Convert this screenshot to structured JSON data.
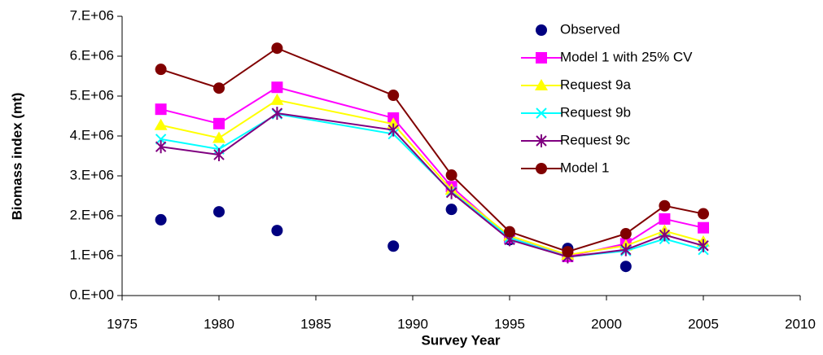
{
  "chart_data": {
    "type": "line",
    "x_label": "Survey Year",
    "y_label": "Biomass index (mt)",
    "x": [
      1977,
      1980,
      1983,
      1989,
      1992,
      1995,
      1998,
      2001,
      2003,
      2005
    ],
    "series": [
      {
        "name": "Observed",
        "color": "#000080",
        "marker": "circle",
        "line": false,
        "values": [
          1900000,
          2100000,
          1630000,
          1240000,
          2160000,
          1400000,
          1180000,
          730000,
          null,
          null
        ]
      },
      {
        "name": "Model 1 with 25% CV",
        "color": "#ff00ff",
        "marker": "square",
        "line": true,
        "values": [
          4670000,
          4310000,
          5220000,
          4450000,
          2730000,
          1450000,
          980000,
          1300000,
          1920000,
          1700000
        ]
      },
      {
        "name": "Request 9a",
        "color": "#ffff00",
        "marker": "triangle",
        "line": true,
        "values": [
          4270000,
          3950000,
          4900000,
          4300000,
          2650000,
          1500000,
          1020000,
          1250000,
          1620000,
          1350000
        ]
      },
      {
        "name": "Request 9b",
        "color": "#00ffff",
        "marker": "x",
        "line": true,
        "values": [
          3920000,
          3670000,
          4550000,
          4050000,
          2600000,
          1450000,
          970000,
          1120000,
          1420000,
          1150000
        ]
      },
      {
        "name": "Request 9c",
        "color": "#800080",
        "marker": "star",
        "line": true,
        "values": [
          3730000,
          3530000,
          4570000,
          4150000,
          2580000,
          1400000,
          970000,
          1150000,
          1520000,
          1250000
        ]
      },
      {
        "name": "Model 1",
        "color": "#800000",
        "marker": "circle",
        "line": true,
        "values": [
          5670000,
          5200000,
          6200000,
          5020000,
          3020000,
          1600000,
          1100000,
          1550000,
          2250000,
          2050000
        ]
      }
    ],
    "xlim": [
      1975,
      2010
    ],
    "xticks": [
      1975,
      1980,
      1985,
      1990,
      1995,
      2000,
      2005,
      2010
    ],
    "ylim": [
      0,
      7000000
    ],
    "yticks": [
      {
        "value": 0,
        "label": "0.E+00"
      },
      {
        "value": 1000000,
        "label": "1.E+06"
      },
      {
        "value": 2000000,
        "label": "2.E+06"
      },
      {
        "value": 3000000,
        "label": "3.E+06"
      },
      {
        "value": 4000000,
        "label": "4.E+06"
      },
      {
        "value": 5000000,
        "label": "5.E+06"
      },
      {
        "value": 6000000,
        "label": "6.E+06"
      },
      {
        "value": 7000000,
        "label": "7.E+06"
      }
    ],
    "grid": false,
    "legend": "top-right"
  }
}
